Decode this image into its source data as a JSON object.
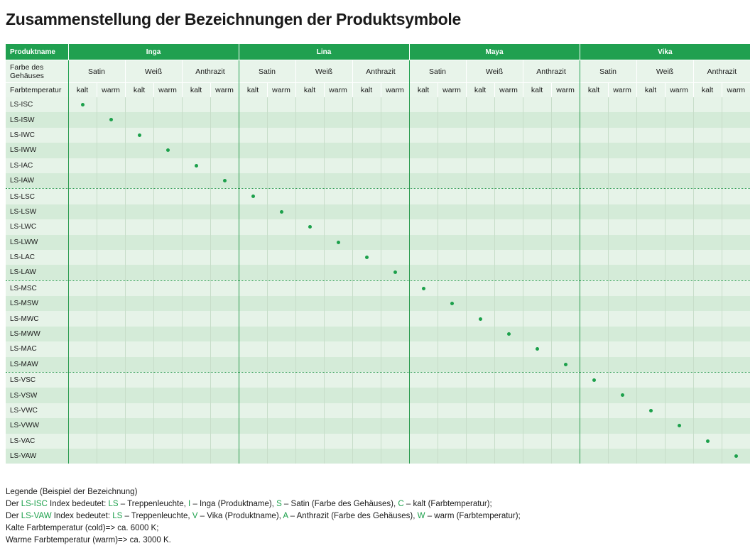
{
  "title": "Zusammenstellung der Bezeichnungen der Produktsymbole",
  "colors": {
    "accent": "#20a050",
    "dot": "#1ca04b",
    "row_light": "#e6f3e8",
    "row_dark": "#d4ebd8"
  },
  "table": {
    "label_product": "Produktname",
    "label_color": "Farbe des Gehäuses",
    "label_temp": "Farbtemperatur",
    "products": [
      "Inga",
      "Lina",
      "Maya",
      "Vika"
    ],
    "housing_colors": [
      "Satin",
      "Weiß",
      "Anthrazit"
    ],
    "temperatures": [
      "kalt",
      "warm"
    ],
    "rows": [
      {
        "code": "LS-ISC",
        "col": 0
      },
      {
        "code": "LS-ISW",
        "col": 1
      },
      {
        "code": "LS-IWC",
        "col": 2
      },
      {
        "code": "LS-IWW",
        "col": 3
      },
      {
        "code": "LS-IAC",
        "col": 4
      },
      {
        "code": "LS-IAW",
        "col": 5
      },
      {
        "code": "LS-LSC",
        "col": 6
      },
      {
        "code": "LS-LSW",
        "col": 7
      },
      {
        "code": "LS-LWC",
        "col": 8
      },
      {
        "code": "LS-LWW",
        "col": 9
      },
      {
        "code": "LS-LAC",
        "col": 10
      },
      {
        "code": "LS-LAW",
        "col": 11
      },
      {
        "code": "LS-MSC",
        "col": 12
      },
      {
        "code": "LS-MSW",
        "col": 13
      },
      {
        "code": "LS-MWC",
        "col": 14
      },
      {
        "code": "LS-MWW",
        "col": 15
      },
      {
        "code": "LS-MAC",
        "col": 16
      },
      {
        "code": "LS-MAW",
        "col": 17
      },
      {
        "code": "LS-VSC",
        "col": 18
      },
      {
        "code": "LS-VSW",
        "col": 19
      },
      {
        "code": "LS-VWC",
        "col": 20
      },
      {
        "code": "LS-VWW",
        "col": 21
      },
      {
        "code": "LS-VAC",
        "col": 22
      },
      {
        "code": "LS-VAW",
        "col": 23
      }
    ]
  },
  "legend": {
    "heading": "Legende (Beispiel der Bezeichnung)",
    "line1": [
      {
        "t": "Der ",
        "g": false
      },
      {
        "t": "LS-ISC",
        "g": true
      },
      {
        "t": " Index bedeutet: ",
        "g": false
      },
      {
        "t": "LS",
        "g": true
      },
      {
        "t": " – Treppenleuchte, ",
        "g": false
      },
      {
        "t": "I",
        "g": true
      },
      {
        "t": " – Inga (Produktname), ",
        "g": false
      },
      {
        "t": "S",
        "g": true
      },
      {
        "t": " – Satin (Farbe des Gehäuses), ",
        "g": false
      },
      {
        "t": "C",
        "g": true
      },
      {
        "t": " – kalt (Farbtemperatur);",
        "g": false
      }
    ],
    "line2": [
      {
        "t": "Der ",
        "g": false
      },
      {
        "t": "LS-VAW",
        "g": true
      },
      {
        "t": " Index bedeutet: ",
        "g": false
      },
      {
        "t": "LS",
        "g": true
      },
      {
        "t": " – Treppenleuchte, ",
        "g": false
      },
      {
        "t": "V",
        "g": true
      },
      {
        "t": " – Vika (Produktname), ",
        "g": false
      },
      {
        "t": "A",
        "g": true
      },
      {
        "t": " – Anthrazit (Farbe des Gehäuses), ",
        "g": false
      },
      {
        "t": "W",
        "g": true
      },
      {
        "t": " – warm (Farbtemperatur);",
        "g": false
      }
    ],
    "cold": "Kalte Farbtemperatur (cold)=> ca. 6000 K;",
    "warm": "Warme Farbtemperatur (warm)=> ca. 3000 K."
  }
}
